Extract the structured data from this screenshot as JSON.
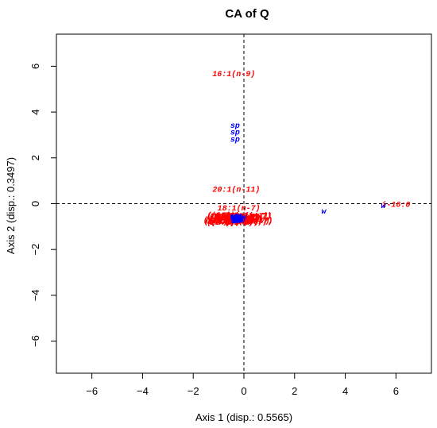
{
  "chart_data": {
    "type": "scatter",
    "title": "CA of Q",
    "xlabel": "Axis 1 (disp.: 0.5565)",
    "ylabel": "Axis 2 (disp.: 0.3497)",
    "xlim": [
      -7.4,
      7.4
    ],
    "ylim": [
      -7.4,
      7.4
    ],
    "xticks": [
      -6,
      -4,
      -2,
      0,
      2,
      4,
      6
    ],
    "yticks": [
      -6,
      -4,
      -2,
      0,
      2,
      4,
      6
    ],
    "reference_lines": {
      "x": 0,
      "y": 0,
      "style": "dashed"
    },
    "colors": {
      "row_points": "#ff0000",
      "column_points": "#0000ff"
    },
    "row_points": [
      {
        "label": "16:1(n-9)",
        "x": -0.4,
        "y": 5.7
      },
      {
        "label": "20:1(n-11)",
        "x": -0.3,
        "y": 0.65
      },
      {
        "label": "18:1(n-7)",
        "x": -0.2,
        "y": -0.15
      },
      {
        "label": "i-16:0",
        "x": 6.0,
        "y": 0.0
      }
    ],
    "row_cluster": {
      "center_x": -0.2,
      "center_y": -0.63,
      "spread_x": 0.95,
      "spread_y": 0.16,
      "count": 60,
      "label": "(n-7)"
    },
    "column_points": [
      {
        "label": "sp",
        "x": -0.35,
        "y": 3.45
      },
      {
        "label": "sp",
        "x": -0.35,
        "y": 3.15
      },
      {
        "label": "sp",
        "x": -0.35,
        "y": 2.85
      },
      {
        "label": "w",
        "x": 3.15,
        "y": -0.3
      },
      {
        "label": "w",
        "x": 5.5,
        "y": -0.05
      }
    ],
    "column_cluster": {
      "center_x": -0.2,
      "center_y": -0.6,
      "spread_x": 0.25,
      "spread_y": 0.12,
      "count": 25,
      "label": "w"
    }
  }
}
